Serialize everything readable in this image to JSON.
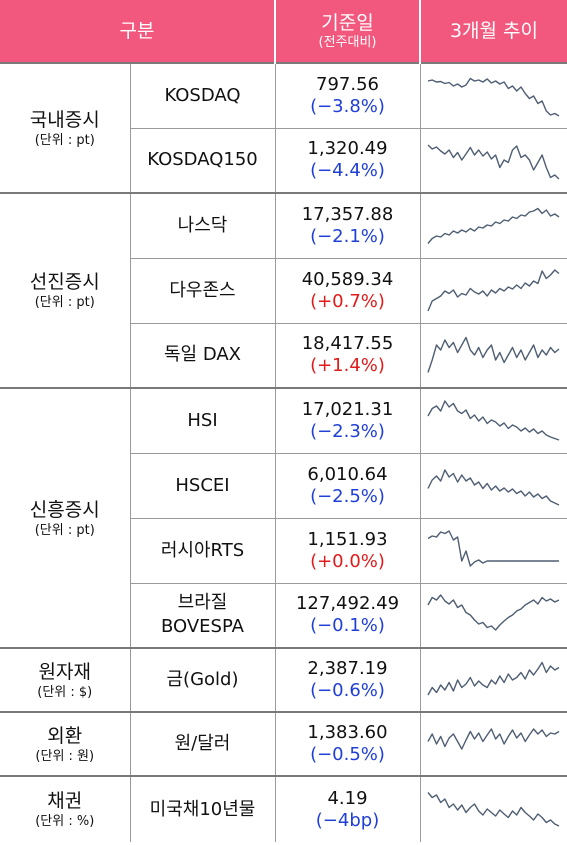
{
  "header": {
    "category": "구분",
    "base_date": "기준일",
    "base_date_sub": "(전주대비)",
    "trend": "3개월 추이"
  },
  "groups": [
    {
      "name": "국내증시",
      "unit": "(단위 : pt)"
    },
    {
      "name": "선진증시",
      "unit": "(단위 : pt)"
    },
    {
      "name": "신흥증시",
      "unit": "(단위 : pt)"
    },
    {
      "name": "원자재",
      "unit": "(단위 : $)"
    },
    {
      "name": "외환",
      "unit": "(단위 : 원)"
    },
    {
      "name": "채권",
      "unit": "(단위 : %)"
    }
  ],
  "rows": [
    {
      "name": "KOSDAQ",
      "value": "797.56",
      "change": "(−3.8%)",
      "direction": "down",
      "trend": [
        0.8,
        0.82,
        0.78,
        0.79,
        0.75,
        0.77,
        0.7,
        0.74,
        0.68,
        0.72,
        0.85,
        0.8,
        0.82,
        0.78,
        0.84,
        0.76,
        0.8,
        0.74,
        0.78,
        0.65,
        0.7,
        0.6,
        0.68,
        0.55,
        0.45,
        0.5,
        0.35,
        0.4,
        0.2,
        0.12,
        0.15,
        0.1
      ]
    },
    {
      "name": "KOSDAQ150",
      "value": "1,320.49",
      "change": "(−4.4%)",
      "direction": "down",
      "trend": [
        0.8,
        0.72,
        0.76,
        0.68,
        0.62,
        0.7,
        0.55,
        0.65,
        0.5,
        0.62,
        0.75,
        0.6,
        0.7,
        0.58,
        0.66,
        0.52,
        0.6,
        0.35,
        0.5,
        0.45,
        0.7,
        0.78,
        0.55,
        0.6,
        0.5,
        0.3,
        0.45,
        0.6,
        0.35,
        0.15,
        0.2,
        0.12
      ]
    },
    {
      "name": "나스닥",
      "value": "17,357.88",
      "change": "(−2.1%)",
      "direction": "down",
      "trend": [
        0.15,
        0.25,
        0.3,
        0.28,
        0.35,
        0.32,
        0.4,
        0.36,
        0.42,
        0.38,
        0.45,
        0.4,
        0.48,
        0.46,
        0.52,
        0.5,
        0.58,
        0.55,
        0.62,
        0.6,
        0.68,
        0.65,
        0.72,
        0.7,
        0.78,
        0.8,
        0.85,
        0.75,
        0.82,
        0.7,
        0.74,
        0.68
      ]
    },
    {
      "name": "다우존스",
      "value": "40,589.34",
      "change": "(+0.7%)",
      "direction": "up",
      "trend": [
        0.1,
        0.3,
        0.35,
        0.4,
        0.5,
        0.45,
        0.52,
        0.38,
        0.45,
        0.42,
        0.55,
        0.48,
        0.44,
        0.5,
        0.4,
        0.52,
        0.46,
        0.55,
        0.5,
        0.58,
        0.54,
        0.62,
        0.55,
        0.66,
        0.6,
        0.7,
        0.65,
        0.9,
        0.75,
        0.82,
        0.92,
        0.85
      ]
    },
    {
      "name": "독일 DAX",
      "value": "18,417.55",
      "change": "(+1.4%)",
      "direction": "up",
      "trend": [
        0.15,
        0.4,
        0.7,
        0.6,
        0.8,
        0.65,
        0.75,
        0.55,
        0.7,
        0.85,
        0.6,
        0.5,
        0.65,
        0.45,
        0.6,
        0.7,
        0.4,
        0.55,
        0.35,
        0.5,
        0.65,
        0.45,
        0.6,
        0.4,
        0.55,
        0.7,
        0.45,
        0.6,
        0.5,
        0.65,
        0.55,
        0.62
      ]
    },
    {
      "name": "HSI",
      "value": "17,021.31",
      "change": "(−2.3%)",
      "direction": "down",
      "trend": [
        0.6,
        0.75,
        0.8,
        0.7,
        0.9,
        0.78,
        0.85,
        0.7,
        0.65,
        0.72,
        0.55,
        0.62,
        0.5,
        0.58,
        0.45,
        0.52,
        0.48,
        0.4,
        0.46,
        0.35,
        0.42,
        0.38,
        0.3,
        0.36,
        0.28,
        0.34,
        0.25,
        0.3,
        0.22,
        0.18,
        0.15,
        0.12
      ]
    },
    {
      "name": "HSCEI",
      "value": "6,010.64",
      "change": "(−2.5%)",
      "direction": "down",
      "trend": [
        0.45,
        0.62,
        0.7,
        0.6,
        0.82,
        0.68,
        0.75,
        0.58,
        0.72,
        0.6,
        0.66,
        0.52,
        0.58,
        0.45,
        0.55,
        0.42,
        0.5,
        0.4,
        0.46,
        0.38,
        0.44,
        0.35,
        0.4,
        0.3,
        0.38,
        0.28,
        0.34,
        0.25,
        0.3,
        0.2,
        0.16,
        0.12
      ]
    },
    {
      "name": "러시아RTS",
      "value": "1,151.93",
      "change": "(+0.0%)",
      "direction": "up",
      "trend": [
        0.75,
        0.8,
        0.78,
        0.88,
        0.85,
        0.9,
        0.72,
        0.78,
        0.3,
        0.5,
        0.2,
        0.28,
        0.32,
        0.26,
        0.3,
        0.3,
        0.3,
        0.3,
        0.3,
        0.3,
        0.3,
        0.3,
        0.3,
        0.3,
        0.3,
        0.3,
        0.3,
        0.3,
        0.3,
        0.3,
        0.3,
        0.3
      ]
    },
    {
      "name": "브라질\nBOVESPA",
      "value": "127,492.49",
      "change": "(−0.1%)",
      "direction": "down",
      "trend": [
        0.7,
        0.85,
        0.8,
        0.9,
        0.78,
        0.72,
        0.8,
        0.65,
        0.7,
        0.55,
        0.5,
        0.4,
        0.32,
        0.35,
        0.25,
        0.28,
        0.2,
        0.3,
        0.38,
        0.45,
        0.5,
        0.58,
        0.62,
        0.7,
        0.75,
        0.8,
        0.72,
        0.85,
        0.78,
        0.82,
        0.76,
        0.8
      ]
    },
    {
      "name": "금(Gold)",
      "value": "2,387.19",
      "change": "(−0.6%)",
      "direction": "down",
      "trend": [
        0.2,
        0.35,
        0.25,
        0.4,
        0.3,
        0.45,
        0.28,
        0.5,
        0.35,
        0.42,
        0.55,
        0.38,
        0.48,
        0.4,
        0.35,
        0.5,
        0.42,
        0.58,
        0.45,
        0.62,
        0.5,
        0.55,
        0.65,
        0.52,
        0.7,
        0.6,
        0.72,
        0.85,
        0.65,
        0.78,
        0.7,
        0.75
      ]
    },
    {
      "name": "원/달러",
      "value": "1,383.60",
      "change": "(−0.5%)",
      "direction": "down",
      "trend": [
        0.55,
        0.7,
        0.5,
        0.65,
        0.45,
        0.62,
        0.7,
        0.55,
        0.4,
        0.58,
        0.75,
        0.6,
        0.72,
        0.55,
        0.68,
        0.8,
        0.6,
        0.7,
        0.5,
        0.65,
        0.78,
        0.62,
        0.72,
        0.55,
        0.68,
        0.8,
        0.7,
        0.78,
        0.65,
        0.72,
        0.7,
        0.75
      ]
    },
    {
      "name": "미국채10년물",
      "value": "4.19",
      "change": "(−4bp)",
      "direction": "down",
      "trend": [
        0.85,
        0.75,
        0.8,
        0.65,
        0.72,
        0.55,
        0.62,
        0.5,
        0.6,
        0.45,
        0.55,
        0.62,
        0.48,
        0.4,
        0.52,
        0.45,
        0.38,
        0.5,
        0.42,
        0.35,
        0.48,
        0.4,
        0.55,
        0.45,
        0.38,
        0.3,
        0.42,
        0.35,
        0.25,
        0.3,
        0.22,
        0.18
      ]
    }
  ]
}
